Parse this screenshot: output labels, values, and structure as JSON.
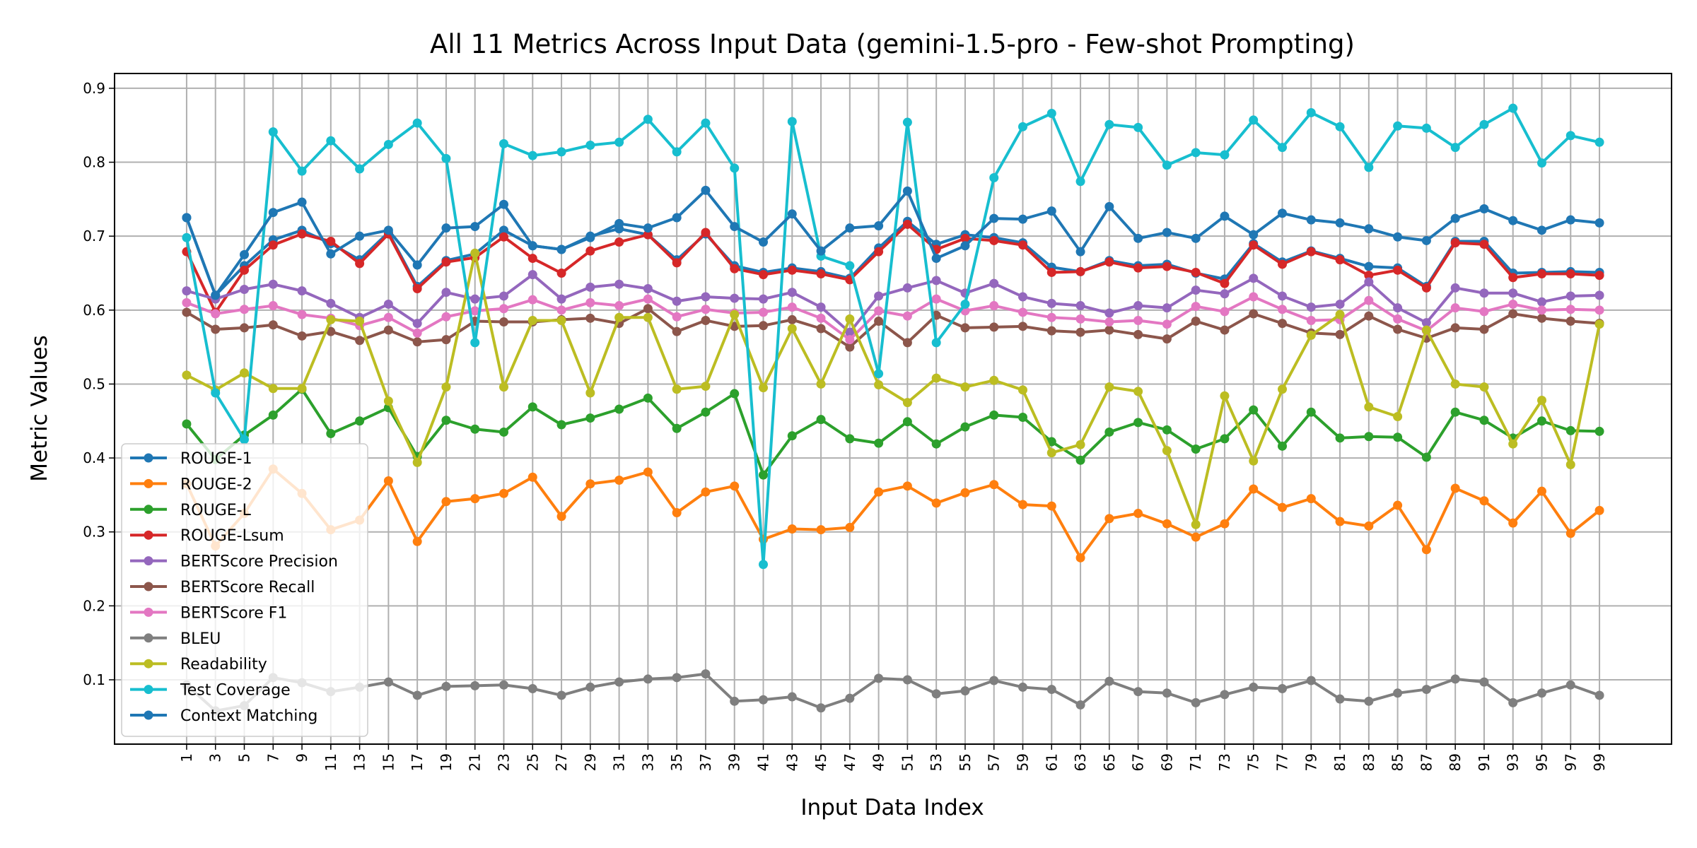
{
  "chart_data": {
    "type": "line",
    "title": "All 11 Metrics Across Input Data (gemini-1.5-pro - Few-shot Prompting)",
    "xlabel": "Input Data Index",
    "ylabel": "Metric Values",
    "x": [
      1,
      3,
      5,
      7,
      9,
      11,
      13,
      15,
      17,
      19,
      21,
      23,
      25,
      27,
      29,
      31,
      33,
      35,
      37,
      39,
      41,
      43,
      45,
      47,
      49,
      51,
      53,
      55,
      57,
      59,
      61,
      63,
      65,
      67,
      69,
      71,
      73,
      75,
      77,
      79,
      81,
      83,
      85,
      87,
      89,
      91,
      93,
      95,
      97,
      99
    ],
    "xlim": [
      -4,
      104
    ],
    "ylim": [
      0.013,
      0.92
    ],
    "yticks": [
      0.1,
      0.2,
      0.3,
      0.4,
      0.5,
      0.6,
      0.7,
      0.8,
      0.9
    ],
    "ytick_labels": [
      "0.1",
      "0.2",
      "0.3",
      "0.4",
      "0.5",
      "0.6",
      "0.7",
      "0.8",
      "0.9"
    ],
    "grid": true,
    "legend_position": "lower-left",
    "series": [
      {
        "name": "ROUGE-1",
        "color": "#1f77b4",
        "values": [
          0.725,
          0.62,
          0.66,
          0.695,
          0.708,
          0.69,
          0.668,
          0.705,
          0.632,
          0.667,
          0.676,
          0.708,
          0.687,
          0.682,
          0.7,
          0.71,
          0.702,
          0.668,
          0.703,
          0.66,
          0.651,
          0.657,
          0.652,
          0.643,
          0.684,
          0.72,
          0.689,
          0.702,
          0.698,
          0.691,
          0.658,
          0.652,
          0.667,
          0.66,
          0.662,
          0.65,
          0.642,
          0.69,
          0.665,
          0.68,
          0.67,
          0.659,
          0.657,
          0.632,
          0.693,
          0.693,
          0.65,
          0.651,
          0.652,
          0.651
        ]
      },
      {
        "name": "ROUGE-2",
        "color": "#ff7f0e",
        "values": [
          0.365,
          0.281,
          0.325,
          0.385,
          0.352,
          0.303,
          0.316,
          0.369,
          0.287,
          0.341,
          0.345,
          0.352,
          0.374,
          0.321,
          0.365,
          0.37,
          0.381,
          0.326,
          0.354,
          0.362,
          0.29,
          0.304,
          0.303,
          0.306,
          0.354,
          0.362,
          0.339,
          0.353,
          0.364,
          0.337,
          0.335,
          0.265,
          0.318,
          0.325,
          0.311,
          0.293,
          0.311,
          0.358,
          0.333,
          0.345,
          0.314,
          0.308,
          0.336,
          0.276,
          0.359,
          0.342,
          0.312,
          0.355,
          0.298,
          0.329
        ]
      },
      {
        "name": "ROUGE-L",
        "color": "#2ca02c",
        "values": [
          0.446,
          0.398,
          0.431,
          0.458,
          0.493,
          0.433,
          0.45,
          0.468,
          0.402,
          0.451,
          0.439,
          0.435,
          0.469,
          0.445,
          0.454,
          0.466,
          0.481,
          0.44,
          0.462,
          0.487,
          0.377,
          0.43,
          0.452,
          0.426,
          0.42,
          0.449,
          0.419,
          0.442,
          0.458,
          0.455,
          0.422,
          0.397,
          0.435,
          0.448,
          0.438,
          0.412,
          0.426,
          0.465,
          0.416,
          0.462,
          0.427,
          0.429,
          0.428,
          0.401,
          0.462,
          0.451,
          0.427,
          0.45,
          0.437,
          0.436
        ]
      },
      {
        "name": "ROUGE-Lsum",
        "color": "#d62728",
        "values": [
          0.679,
          0.597,
          0.654,
          0.688,
          0.703,
          0.693,
          0.663,
          0.703,
          0.629,
          0.665,
          0.671,
          0.699,
          0.67,
          0.65,
          0.68,
          0.692,
          0.702,
          0.664,
          0.705,
          0.656,
          0.648,
          0.654,
          0.649,
          0.641,
          0.679,
          0.716,
          0.682,
          0.697,
          0.694,
          0.688,
          0.651,
          0.652,
          0.665,
          0.657,
          0.659,
          0.651,
          0.636,
          0.688,
          0.662,
          0.679,
          0.668,
          0.647,
          0.654,
          0.63,
          0.691,
          0.689,
          0.644,
          0.649,
          0.649,
          0.647
        ]
      },
      {
        "name": "BERTScore Precision",
        "color": "#9467bd",
        "values": [
          0.626,
          0.615,
          0.628,
          0.635,
          0.626,
          0.609,
          0.59,
          0.608,
          0.582,
          0.624,
          0.615,
          0.619,
          0.648,
          0.615,
          0.631,
          0.635,
          0.629,
          0.612,
          0.618,
          0.616,
          0.615,
          0.624,
          0.604,
          0.57,
          0.619,
          0.63,
          0.64,
          0.623,
          0.636,
          0.618,
          0.609,
          0.606,
          0.596,
          0.606,
          0.603,
          0.627,
          0.622,
          0.643,
          0.619,
          0.604,
          0.608,
          0.638,
          0.603,
          0.583,
          0.63,
          0.623,
          0.623,
          0.611,
          0.619,
          0.62
        ]
      },
      {
        "name": "BERTScore Recall",
        "color": "#8c564b",
        "values": [
          0.597,
          0.574,
          0.576,
          0.58,
          0.565,
          0.571,
          0.559,
          0.573,
          0.557,
          0.56,
          0.585,
          0.584,
          0.584,
          0.587,
          0.589,
          0.582,
          0.602,
          0.571,
          0.586,
          0.578,
          0.579,
          0.587,
          0.575,
          0.55,
          0.585,
          0.556,
          0.593,
          0.576,
          0.577,
          0.578,
          0.572,
          0.57,
          0.573,
          0.567,
          0.561,
          0.585,
          0.573,
          0.595,
          0.582,
          0.569,
          0.567,
          0.592,
          0.574,
          0.562,
          0.576,
          0.574,
          0.595,
          0.589,
          0.585,
          0.582
        ]
      },
      {
        "name": "BERTScore F1",
        "color": "#e377c2",
        "values": [
          0.61,
          0.595,
          0.601,
          0.606,
          0.594,
          0.589,
          0.579,
          0.59,
          0.569,
          0.591,
          0.599,
          0.602,
          0.614,
          0.6,
          0.61,
          0.606,
          0.615,
          0.591,
          0.601,
          0.596,
          0.597,
          0.604,
          0.589,
          0.56,
          0.599,
          0.592,
          0.615,
          0.599,
          0.606,
          0.597,
          0.59,
          0.588,
          0.584,
          0.586,
          0.581,
          0.605,
          0.598,
          0.618,
          0.601,
          0.586,
          0.587,
          0.613,
          0.588,
          0.572,
          0.603,
          0.598,
          0.608,
          0.6,
          0.601,
          0.6
        ]
      },
      {
        "name": "BLEU",
        "color": "#7f7f7f",
        "values": [
          0.093,
          0.058,
          0.065,
          0.103,
          0.096,
          0.084,
          0.09,
          0.097,
          0.079,
          0.091,
          0.092,
          0.093,
          0.088,
          0.079,
          0.09,
          0.097,
          0.101,
          0.103,
          0.108,
          0.071,
          0.073,
          0.077,
          0.062,
          0.075,
          0.102,
          0.1,
          0.081,
          0.085,
          0.099,
          0.09,
          0.087,
          0.066,
          0.098,
          0.084,
          0.082,
          0.069,
          0.08,
          0.09,
          0.088,
          0.099,
          0.074,
          0.071,
          0.082,
          0.087,
          0.101,
          0.097,
          0.069,
          0.082,
          0.093,
          0.079
        ]
      },
      {
        "name": "Readability",
        "color": "#bcbd22",
        "values": [
          0.512,
          0.492,
          0.515,
          0.494,
          0.494,
          0.587,
          0.585,
          0.477,
          0.394,
          0.496,
          0.677,
          0.496,
          0.586,
          0.586,
          0.488,
          0.59,
          0.59,
          0.493,
          0.497,
          0.594,
          0.495,
          0.575,
          0.5,
          0.588,
          0.499,
          0.475,
          0.508,
          0.496,
          0.505,
          0.492,
          0.407,
          0.418,
          0.496,
          0.49,
          0.41,
          0.31,
          0.484,
          0.396,
          0.493,
          0.566,
          0.594,
          0.469,
          0.456,
          0.573,
          0.5,
          0.496,
          0.419,
          0.478,
          0.391,
          0.581
        ]
      },
      {
        "name": "Test Coverage",
        "color": "#17becf",
        "values": [
          0.698,
          0.488,
          0.425,
          0.841,
          0.788,
          0.829,
          0.791,
          0.824,
          0.853,
          0.805,
          0.556,
          0.825,
          0.809,
          0.814,
          0.823,
          0.827,
          0.858,
          0.814,
          0.853,
          0.792,
          0.256,
          0.855,
          0.673,
          0.66,
          0.514,
          0.854,
          0.556,
          0.608,
          0.779,
          0.848,
          0.866,
          0.774,
          0.851,
          0.847,
          0.796,
          0.813,
          0.81,
          0.857,
          0.82,
          0.867,
          0.848,
          0.793,
          0.849,
          0.846,
          0.82,
          0.851,
          0.873,
          0.799,
          0.836,
          0.827
        ]
      },
      {
        "name": "Context Matching",
        "color": "#1f77b4",
        "values": [
          0.725,
          0.62,
          0.675,
          0.732,
          0.746,
          0.676,
          0.7,
          0.708,
          0.661,
          0.711,
          0.713,
          0.743,
          0.687,
          0.682,
          0.698,
          0.717,
          0.711,
          0.725,
          0.762,
          0.713,
          0.692,
          0.73,
          0.68,
          0.711,
          0.714,
          0.761,
          0.67,
          0.687,
          0.724,
          0.723,
          0.734,
          0.679,
          0.74,
          0.697,
          0.705,
          0.697,
          0.727,
          0.702,
          0.731,
          0.722,
          0.718,
          0.71,
          0.699,
          0.694,
          0.724,
          0.737,
          0.721,
          0.708,
          0.722,
          0.718
        ]
      }
    ]
  }
}
